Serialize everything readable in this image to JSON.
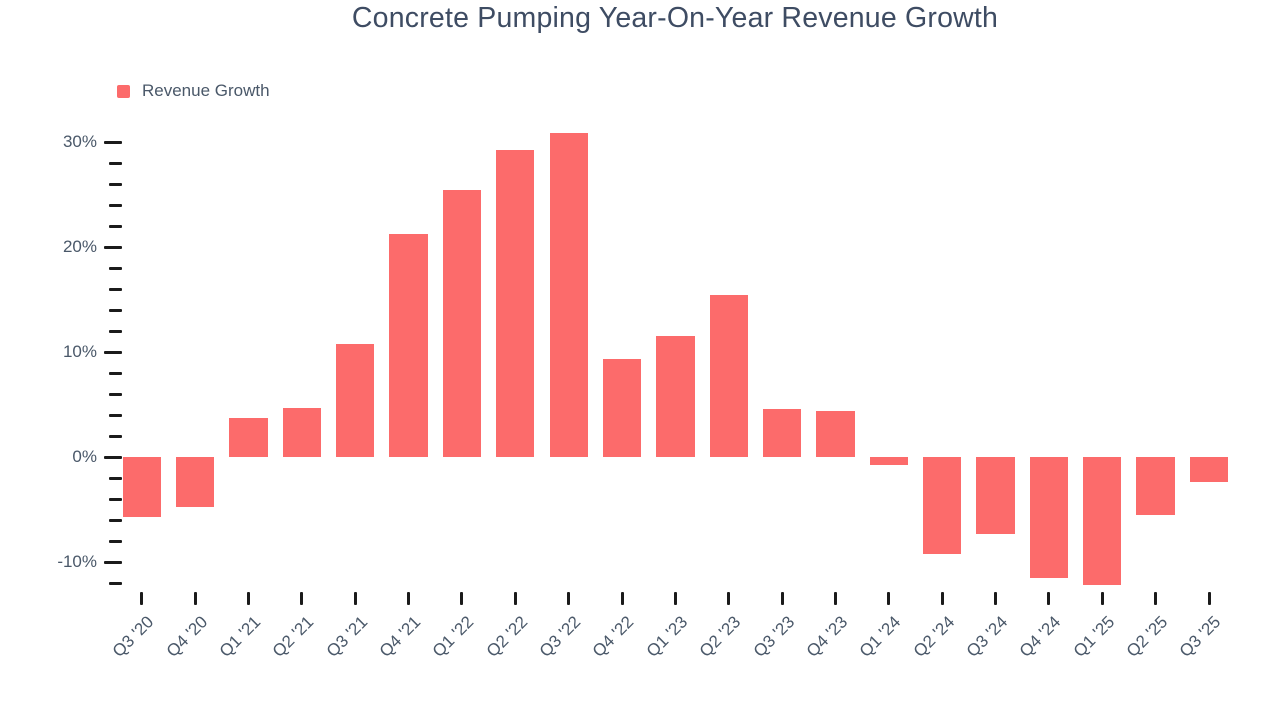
{
  "chart": {
    "title": "Concrete Pumping Year-On-Year Revenue Growth",
    "legend": {
      "label": "Revenue Growth"
    },
    "colors": {
      "bar": "#FC6B6B",
      "title_text": "#3E4C63",
      "axis_text": "#4A5869",
      "tick": "#1B1B1B",
      "background": "#FFFFFF"
    }
  },
  "chart_data": {
    "type": "bar",
    "title": "Concrete Pumping Year-On-Year Revenue Growth",
    "categories": [
      "Q3 '20",
      "Q4 '20",
      "Q1 '21",
      "Q2 '21",
      "Q3 '21",
      "Q4 '21",
      "Q1 '22",
      "Q2 '22",
      "Q3 '22",
      "Q4 '22",
      "Q1 '23",
      "Q2 '23",
      "Q3 '23",
      "Q4 '23",
      "Q1 '24",
      "Q2 '24",
      "Q3 '24",
      "Q4 '24",
      "Q1 '25",
      "Q2 '25",
      "Q3 '25"
    ],
    "series": [
      {
        "name": "Revenue Growth",
        "values": [
          -5.7,
          -4.7,
          3.7,
          4.7,
          10.8,
          21.3,
          25.5,
          29.3,
          30.9,
          9.4,
          11.6,
          15.5,
          4.6,
          4.4,
          -0.7,
          -9.2,
          -7.3,
          -11.5,
          -12.2,
          -5.5,
          -2.4
        ]
      }
    ],
    "xlabel": "",
    "ylabel": "",
    "y_axis": {
      "unit": "%",
      "major_ticks": [
        30,
        20,
        10,
        0,
        -10
      ],
      "major_tick_labels": [
        "30%",
        "20%",
        "10%",
        "0%",
        "-10%"
      ],
      "minor_tick_step": 2,
      "minor_tick_min": -12,
      "minor_tick_max": 30
    },
    "ylim": [
      -12.5,
      31.5
    ],
    "grid": false,
    "legend_position": "top-left"
  }
}
